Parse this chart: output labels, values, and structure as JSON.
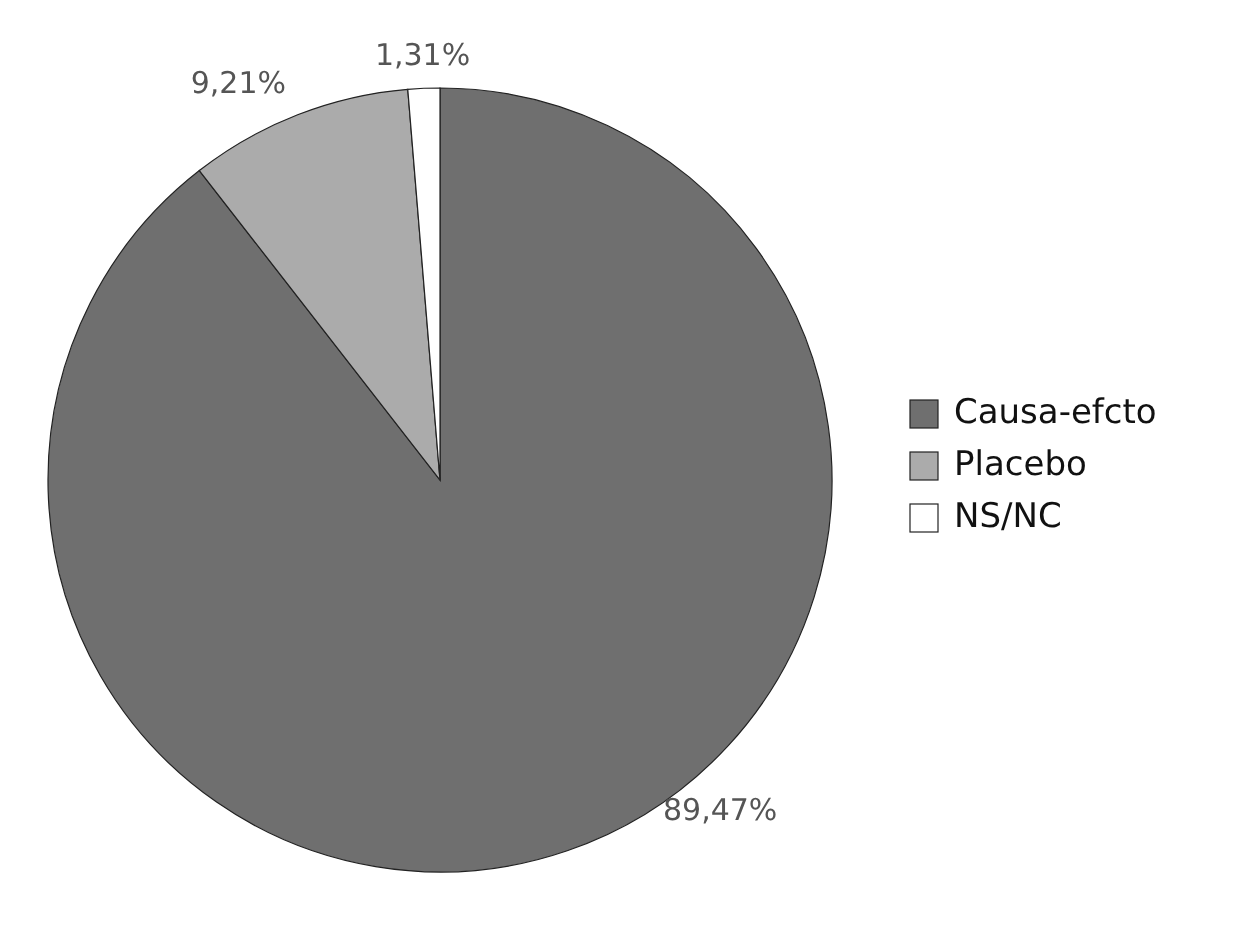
{
  "chart_data": {
    "type": "pie",
    "categories": [
      "Causa-efcto",
      "Placebo",
      "NS/NC"
    ],
    "values": [
      89.47,
      9.21,
      1.31
    ],
    "colors": [
      "#6f6f6f",
      "#ababab",
      "#ffffff"
    ],
    "value_labels": [
      "89,47%",
      "9,21%",
      "1,31%"
    ],
    "legend": "right"
  }
}
